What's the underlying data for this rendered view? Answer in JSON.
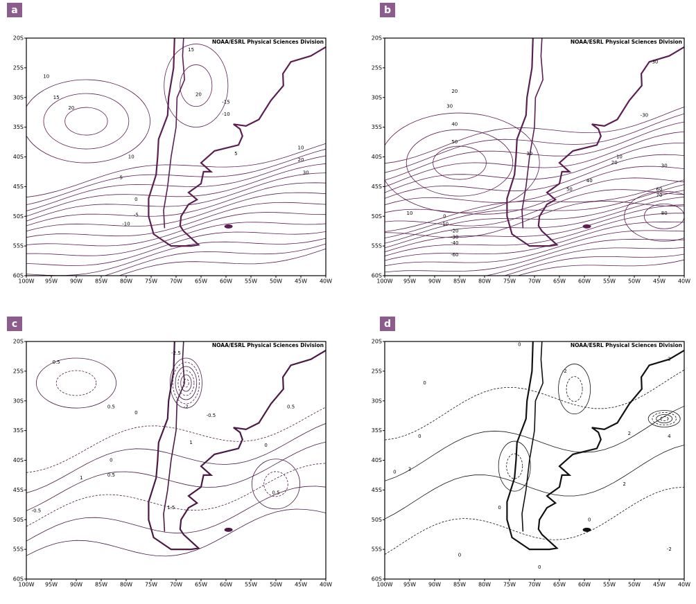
{
  "panels": [
    {
      "label": "a",
      "credit": "NOAA/ESRL Physical Sciences Division",
      "contour_labels": [
        "10",
        "15",
        "20",
        "15",
        "20",
        "10",
        "5",
        "0",
        "-5",
        "-10",
        "-15",
        "-10",
        "5",
        "10",
        "20",
        "30"
      ]
    },
    {
      "label": "b",
      "credit": "NOAA/ESRL Physical Sciences Division",
      "contour_labels": [
        "20",
        "30",
        "40",
        "50",
        "10",
        "0",
        "-10",
        "-20",
        "-30",
        "-40",
        "-60",
        "30",
        "10",
        "20",
        "30",
        "40",
        "50",
        "60",
        "70",
        "80",
        "-30",
        "-30"
      ]
    },
    {
      "label": "c",
      "credit": "NOAA/ESRL Physical Sciences Division",
      "contour_labels": [
        "0.5",
        "0",
        "0.5",
        "0",
        "0.5",
        "1",
        "-0.5",
        "1.5",
        "1",
        "0.5",
        "0",
        "0.5",
        "-2.5",
        "-2",
        "-0.5"
      ]
    },
    {
      "label": "d",
      "credit": "NOAA/ESRL Physical Sciences Division",
      "contour_labels": [
        "0",
        "0",
        "0",
        "2",
        "0",
        "0",
        "0",
        "2",
        "2",
        "-2",
        "2",
        "-2",
        "4",
        "0",
        "0"
      ]
    }
  ],
  "lat_labels": [
    "20S",
    "25S",
    "30S",
    "35S",
    "40S",
    "45S",
    "50S",
    "55S",
    "60S"
  ],
  "lon_labels": [
    "100W",
    "95W",
    "90W",
    "85W",
    "80W",
    "75W",
    "70W",
    "65W",
    "60W",
    "55W",
    "50W",
    "45W",
    "40W"
  ]
}
